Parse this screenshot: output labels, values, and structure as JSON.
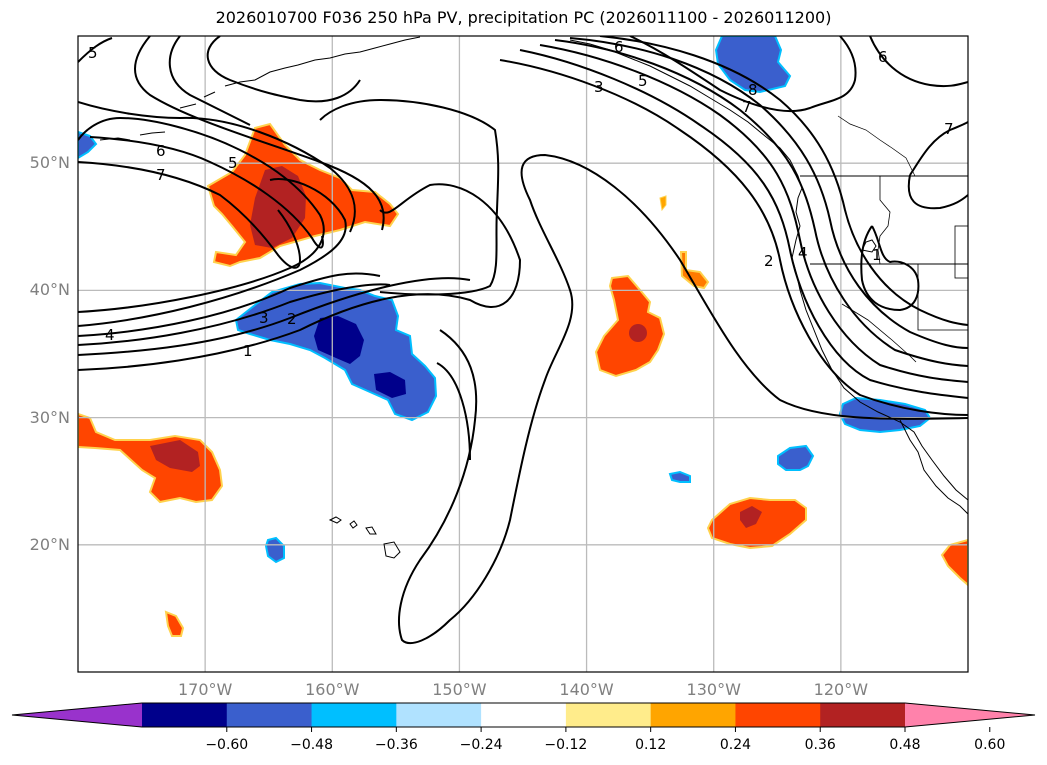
{
  "title": "2026010700 F036 250 hPa PV, precipitation PC (2026011100 - 2026011200)",
  "map": {
    "projection": "PlateCarree",
    "extent_lon": [
      -180,
      -110
    ],
    "extent_lat": [
      10,
      60
    ],
    "lat_ticks": [
      {
        "value": 50,
        "label": "50°N"
      },
      {
        "value": 40,
        "label": "40°N"
      },
      {
        "value": 30,
        "label": "30°N"
      },
      {
        "value": 20,
        "label": "20°N"
      }
    ],
    "lon_ticks": [
      {
        "value": -170,
        "label": "170°W"
      },
      {
        "value": -160,
        "label": "160°W"
      },
      {
        "value": -150,
        "label": "150°W"
      },
      {
        "value": -140,
        "label": "140°W"
      },
      {
        "value": -130,
        "label": "130°W"
      },
      {
        "value": -120,
        "label": "120°W"
      }
    ],
    "gridline_color": "#bbbbbb",
    "pv_contour_labels": [
      "5",
      "6",
      "7",
      "5",
      "4",
      "3",
      "2",
      "1",
      "3",
      "5",
      "6",
      "7",
      "8",
      "2",
      "4",
      "1",
      "6",
      "7"
    ]
  },
  "colorbar": {
    "colors": [
      "#9932cc",
      "#00008b",
      "#3a5fcd",
      "#00bfff",
      "#b0e2ff",
      "#ffffff",
      "#ffec8b",
      "#ffa500",
      "#ff4500",
      "#b22222",
      "#ff82ab"
    ],
    "ticks": [
      "−0.60",
      "−0.48",
      "−0.36",
      "−0.24",
      "−0.12",
      "0.12",
      "0.24",
      "0.36",
      "0.48",
      "0.60"
    ],
    "extend": "both"
  }
}
